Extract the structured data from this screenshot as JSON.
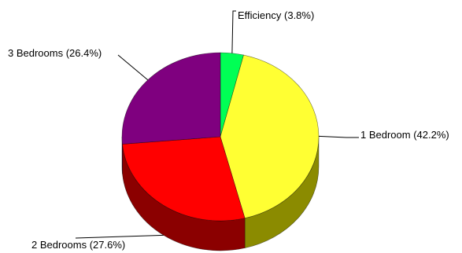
{
  "chart_data": {
    "type": "pie",
    "variant": "3d",
    "title": "",
    "series": [
      {
        "categories": [
          "Efficiency",
          "1 Bedroom",
          "2 Bedrooms",
          "3 Bedrooms"
        ],
        "values": [
          3.8,
          42.2,
          27.6,
          26.4
        ]
      }
    ],
    "labels": [
      "Efficiency (3.8%)",
      "1 Bedroom (42.2%)",
      "2 Bedrooms (27.6%)",
      "3 Bedrooms (26.4%)"
    ],
    "colors": {
      "top": [
        "#00ff55",
        "#ffff33",
        "#ff0000",
        "#7f007f"
      ],
      "side": [
        "#00aa33",
        "#8b8b00",
        "#8b0000",
        "#550055"
      ]
    },
    "start_angle_deg": 0,
    "direction": "clockwise",
    "legend": "none (labels with leader lines)"
  }
}
